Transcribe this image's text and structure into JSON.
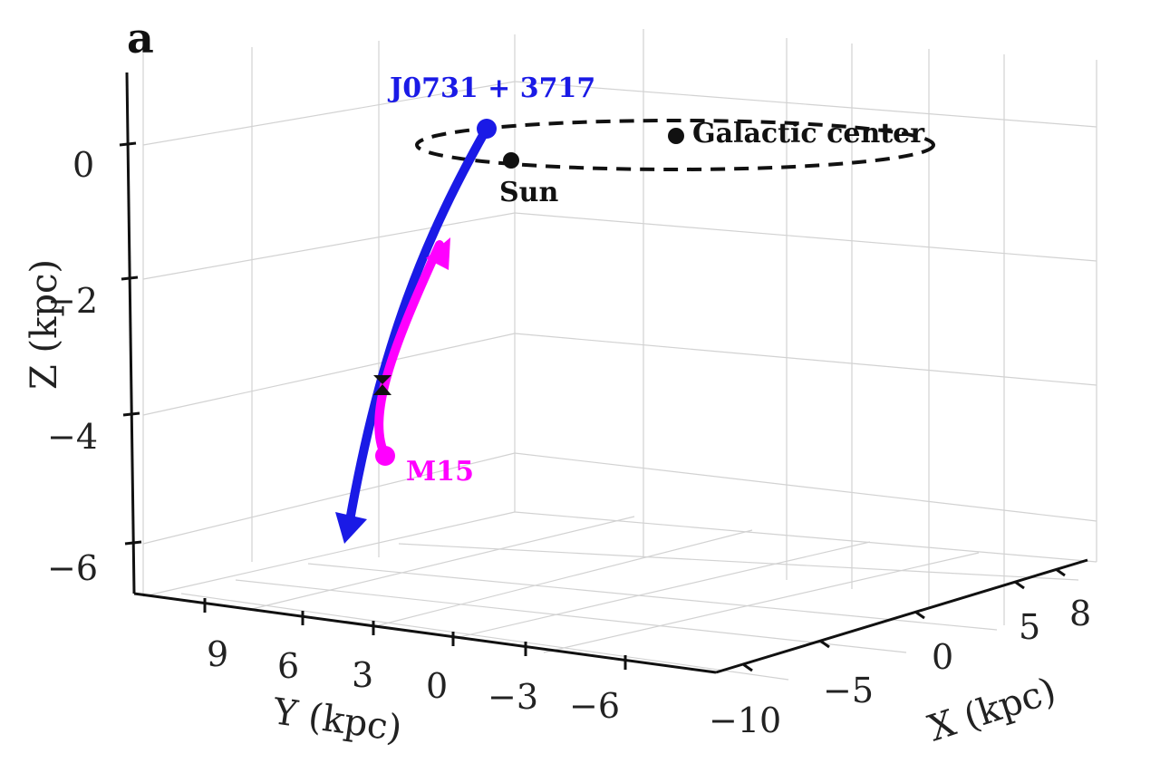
{
  "panel_label": "a",
  "chart_data": {
    "type": "line",
    "projection": "3d",
    "title": "",
    "xlabel": "X (kpc)",
    "ylabel": "Y (kpc)",
    "zlabel": "Z (kpc)",
    "xlim": [
      -12,
      9
    ],
    "ylim": [
      -8,
      11
    ],
    "zlim": [
      -6.8,
      1.0
    ],
    "x_ticks": [
      "−10",
      "−5",
      "0",
      "5",
      "8"
    ],
    "y_ticks": [
      "9",
      "6",
      "3",
      "0",
      "−3",
      "−6"
    ],
    "z_ticks": [
      "0",
      "−2",
      "−4",
      "−6"
    ],
    "series": [
      {
        "name": "J0731 + 3717",
        "color": "#1a1ae6",
        "style": "solid line with arrow at end",
        "x": [
          -8,
          -8.5,
          -9,
          -9.5,
          -10,
          -10.5
        ],
        "y": [
          -1,
          0.5,
          2,
          3,
          4,
          5
        ],
        "z": [
          0.2,
          -1.2,
          -2.7,
          -3.9,
          -5.0,
          -6.0
        ]
      },
      {
        "name": "M15",
        "color": "#ff00ff",
        "style": "solid line with arrow at end",
        "x": [
          -9.6,
          -9.5,
          -9.2,
          -8.8
        ],
        "y": [
          3.4,
          3.2,
          2.6,
          2.0
        ],
        "z": [
          -4.5,
          -3.6,
          -2.6,
          -1.5
        ]
      },
      {
        "name": "Solar orbit",
        "color": "#111111",
        "style": "dashed circle",
        "z": [
          0
        ]
      }
    ],
    "points": [
      {
        "name": "J0731 + 3717",
        "color": "#1a1ae6"
      },
      {
        "name": "M15",
        "color": "#ff00ff"
      },
      {
        "name": "Sun",
        "color": "#111111"
      },
      {
        "name": "Galactic center",
        "color": "#111111"
      },
      {
        "name": "crossing",
        "color": "#111111",
        "marker": "hourglass"
      }
    ],
    "annotations": [
      "J0731 + 3717",
      "Galactic center",
      "Sun",
      "M15"
    ],
    "grid": true
  }
}
